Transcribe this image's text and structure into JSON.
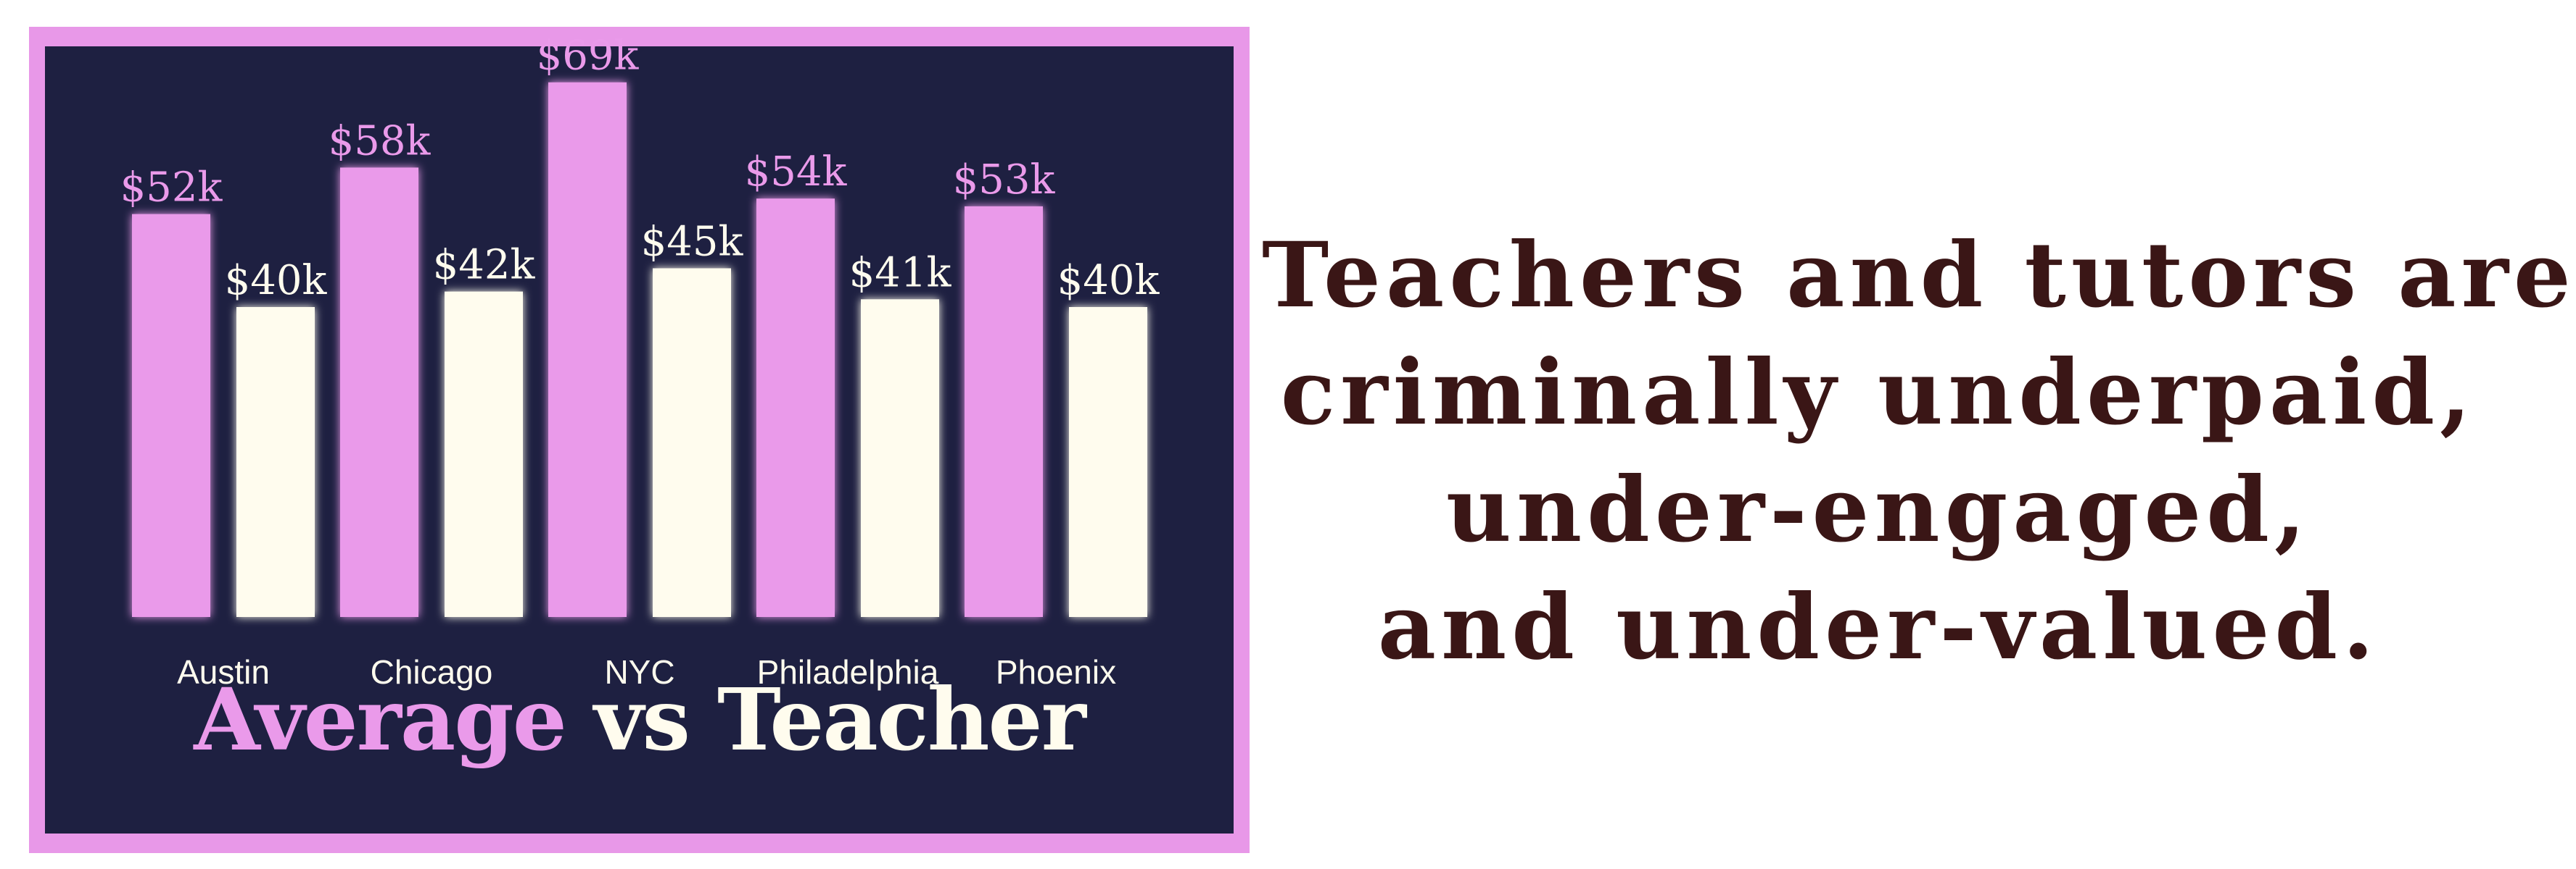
{
  "chart_data": {
    "type": "bar",
    "categories": [
      "Austin",
      "Chicago",
      "NYC",
      "Philadelphia",
      "Phoenix"
    ],
    "series": [
      {
        "values": [
          52,
          58,
          69,
          54,
          53
        ],
        "labels": [
          "$52k",
          "$58k",
          "$69k",
          "$54k",
          "$53k"
        ],
        "color": "#ea9aea"
      },
      {
        "values": [
          40,
          42,
          45,
          41,
          40
        ],
        "labels": [
          "$40k",
          "$42k",
          "$45k",
          "$41k",
          "$40k"
        ],
        "color": "#fffcee"
      }
    ],
    "title_parts": [
      "Average",
      "vs Teacher"
    ],
    "xlabel": "",
    "ylabel": "",
    "ylim": [
      0,
      70
    ],
    "grid": false,
    "legend": "none"
  },
  "headline": {
    "lines": [
      "Teachers and tutors are",
      "criminally underpaid,",
      "under-engaged,",
      "and under-valued."
    ]
  },
  "colors": {
    "frame": "#e898e8",
    "panel": "#1e2041",
    "headline": "#3a1616"
  }
}
